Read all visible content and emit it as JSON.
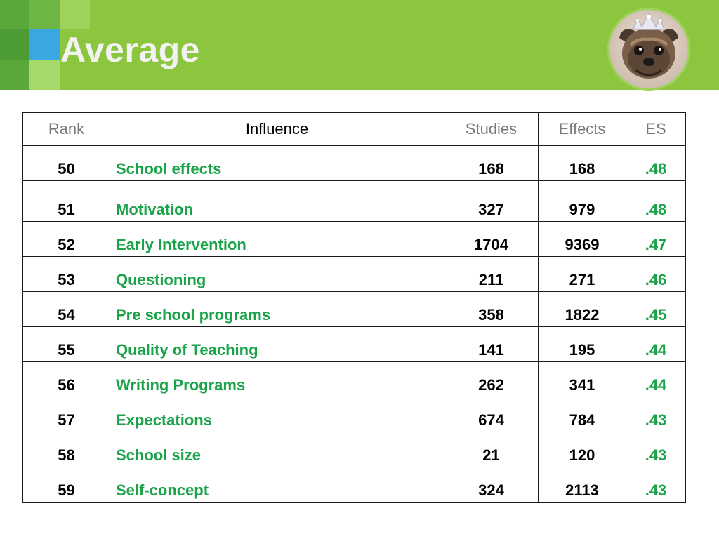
{
  "slide": {
    "title": "Average",
    "photo_icon": "dog-with-tiara-photo",
    "colors": {
      "header_green": "#8cc63f",
      "accent_blue": "#3aa7e0",
      "text_green": "#1aa349"
    }
  },
  "table": {
    "headers": {
      "rank": "Rank",
      "influence": "Influence",
      "studies": "Studies",
      "effects": "Effects",
      "es": "ES"
    },
    "rows": [
      {
        "rank": "50",
        "influence": "School effects",
        "studies": "168",
        "effects": "168",
        "es": ".48"
      },
      {
        "rank": "51",
        "influence": "Motivation",
        "studies": "327",
        "effects": "979",
        "es": ".48"
      },
      {
        "rank": "52",
        "influence": "Early Intervention",
        "studies": "1704",
        "effects": "9369",
        "es": ".47"
      },
      {
        "rank": "53",
        "influence": "Questioning",
        "studies": "211",
        "effects": "271",
        "es": ".46"
      },
      {
        "rank": "54",
        "influence": "Pre school programs",
        "studies": "358",
        "effects": "1822",
        "es": ".45"
      },
      {
        "rank": "55",
        "influence": "Quality of Teaching",
        "studies": "141",
        "effects": "195",
        "es": ".44"
      },
      {
        "rank": "56",
        "influence": "Writing Programs",
        "studies": "262",
        "effects": "341",
        "es": ".44"
      },
      {
        "rank": "57",
        "influence": "Expectations",
        "studies": "674",
        "effects": "784",
        "es": ".43"
      },
      {
        "rank": "58",
        "influence": "School size",
        "studies": "21",
        "effects": "120",
        "es": ".43"
      },
      {
        "rank": "59",
        "influence": "Self-concept",
        "studies": "324",
        "effects": "2113",
        "es": ".43"
      }
    ]
  }
}
